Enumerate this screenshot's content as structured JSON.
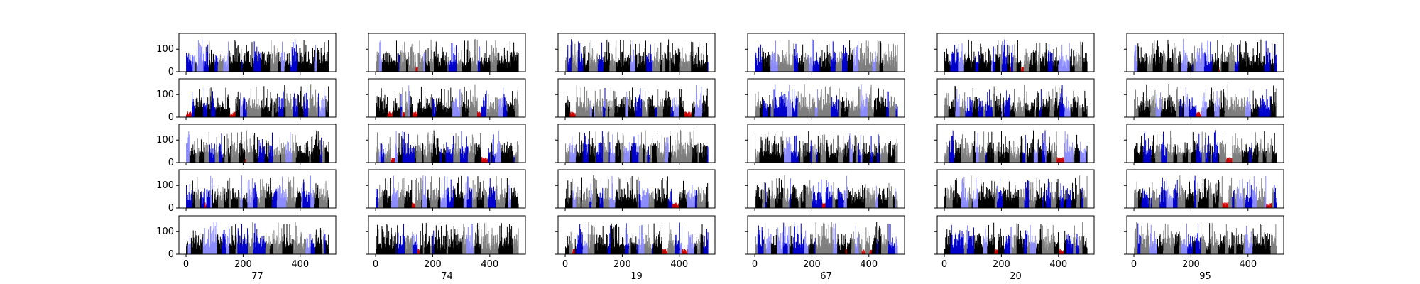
{
  "figure": {
    "columns": [
      "77",
      "74",
      "19",
      "67",
      "20",
      "95"
    ],
    "rows": 5
  },
  "chart_data": {
    "type": "bar",
    "layout": "grid of small multiples (5 rows x 6 columns); column labels under bottom row",
    "xlim": [
      -25,
      525
    ],
    "ylim": [
      0,
      170
    ],
    "xticks": [
      0,
      200,
      400
    ],
    "yticks": [
      0,
      100
    ],
    "grid": false,
    "legend": "none",
    "bar_colors": [
      "#000000",
      "#7f7f7f",
      "#0000cc",
      "#8c8cff",
      "#cc0000"
    ],
    "bars_per_panel": 500,
    "value_range_estimate": [
      0,
      150
    ],
    "panel_titles": [
      "77",
      "74",
      "19",
      "67",
      "20",
      "95"
    ]
  }
}
